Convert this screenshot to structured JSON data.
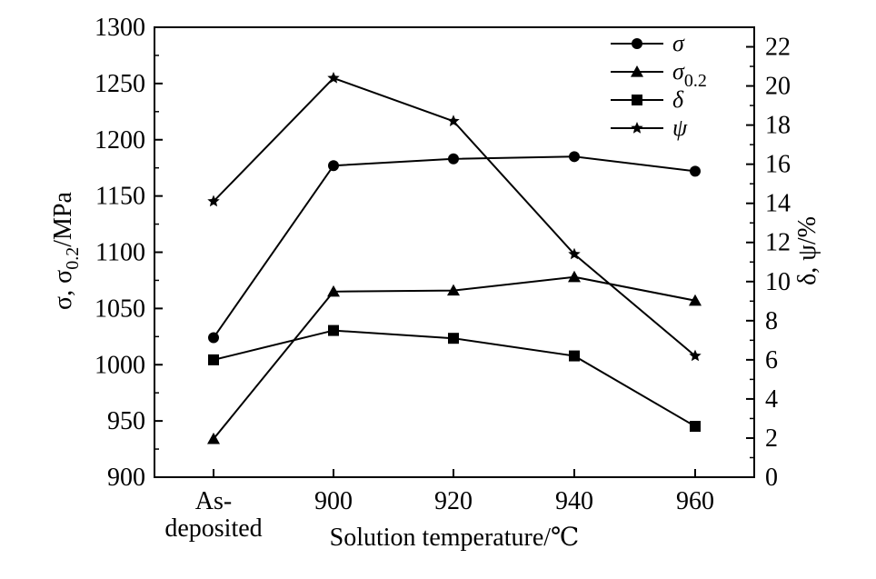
{
  "chart_data": {
    "type": "line",
    "categories": [
      "As-deposited",
      "900",
      "920",
      "940",
      "960"
    ],
    "category_lines": [
      [
        "As-",
        "deposited"
      ],
      [
        "900"
      ],
      [
        "920"
      ],
      [
        "940"
      ],
      [
        "960"
      ]
    ],
    "xlabel": "Solution temperature/℃",
    "ylabel_left": {
      "main": "σ, σ",
      "sub": "0.2",
      "unit": "/MPa"
    },
    "ylabel_right": "δ, ψ/%",
    "ylim_left": [
      900,
      1300
    ],
    "yticks_left": [
      900,
      950,
      1000,
      1050,
      1100,
      1150,
      1200,
      1250,
      1300
    ],
    "ylim_right": [
      0,
      23
    ],
    "yticks_right": [
      0,
      2,
      4,
      6,
      8,
      10,
      12,
      14,
      16,
      18,
      20,
      22
    ],
    "grid": false,
    "legend_position": "top-right",
    "series": [
      {
        "name": "σ",
        "name_sub": "",
        "marker": "circle",
        "axis": "left",
        "values": [
          1024,
          1177,
          1183,
          1185,
          1172
        ]
      },
      {
        "name": "σ",
        "name_sub": "0.2",
        "marker": "triangle",
        "axis": "left",
        "values": [
          934,
          1065,
          1066,
          1078,
          1057
        ]
      },
      {
        "name": "δ",
        "name_sub": "",
        "marker": "square",
        "axis": "right",
        "values": [
          6.0,
          7.5,
          7.1,
          6.2,
          2.6
        ]
      },
      {
        "name": "ψ",
        "name_sub": "",
        "marker": "star",
        "axis": "right",
        "values": [
          14.1,
          20.4,
          18.2,
          11.4,
          6.2
        ]
      }
    ]
  }
}
